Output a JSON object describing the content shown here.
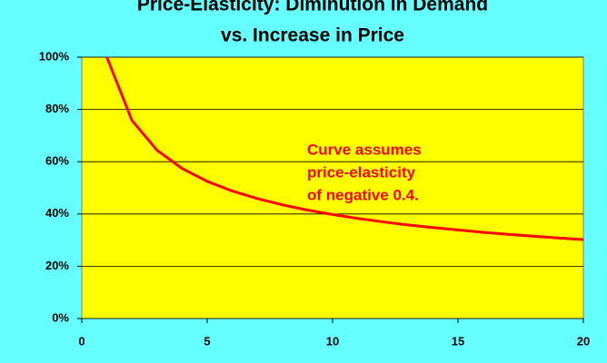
{
  "chart_data": {
    "type": "line",
    "title": [
      "Price-Elasticity:  Diminution  in Demand",
      "vs. Increase in Price"
    ],
    "annotation": [
      "Curve assumes",
      "price-elasticity",
      "of negative 0.4."
    ],
    "x": [
      1,
      2,
      3,
      4,
      5,
      6,
      7,
      8,
      9,
      10,
      11,
      12,
      13,
      14,
      15,
      16,
      17,
      18,
      19,
      20
    ],
    "series": [
      {
        "color": "#ff0000",
        "values": [
          100,
          75.8,
          64.4,
          57.4,
          52.5,
          48.8,
          45.9,
          43.5,
          41.5,
          39.8,
          38.3,
          37.0,
          35.8,
          34.8,
          33.9,
          33.0,
          32.2,
          31.5,
          30.8,
          30.2
        ]
      }
    ],
    "xlim": [
      0,
      20
    ],
    "xticks": [
      0,
      5,
      10,
      15,
      20
    ],
    "ylim": [
      0,
      100
    ],
    "yticks": [
      {
        "value": 0,
        "label": "0%"
      },
      {
        "value": 20,
        "label": "20%"
      },
      {
        "value": 40,
        "label": "40%"
      },
      {
        "value": 60,
        "label": "60%"
      },
      {
        "value": 80,
        "label": "80%"
      },
      {
        "value": 100,
        "label": "100%"
      }
    ],
    "grid": true,
    "background": "#66ffff",
    "plot_background": "#ffff00"
  }
}
